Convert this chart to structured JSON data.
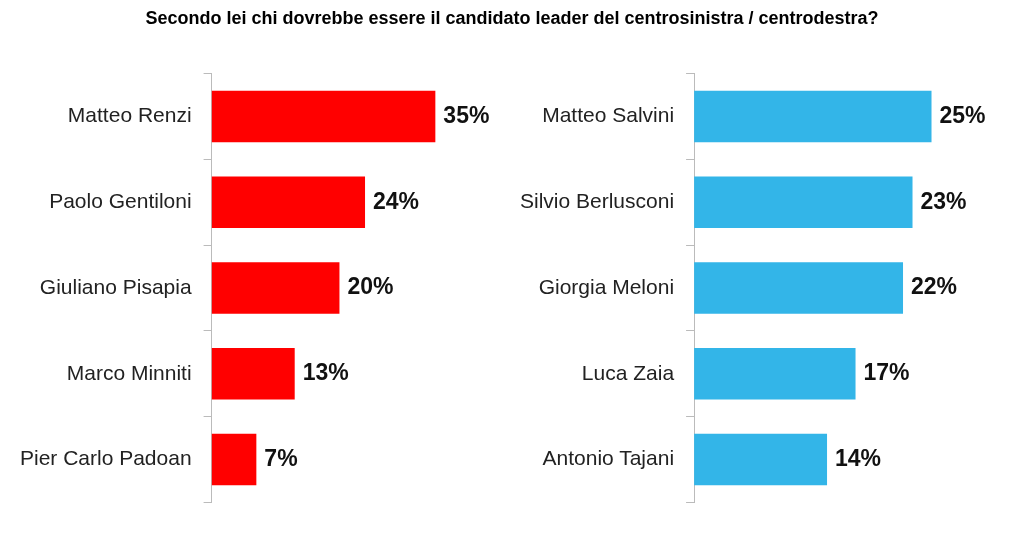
{
  "chart_data": [
    {
      "type": "bar",
      "title": "Secondo lei chi dovrebbe essere il candidato leader del centrosinistra / centrodestra?",
      "orientation": "horizontal",
      "categories": [
        "Matteo Renzi",
        "Paolo Gentiloni",
        "Giuliano Pisapia",
        "Marco Minniti",
        "Pier Carlo Padoan"
      ],
      "values": [
        35,
        24,
        20,
        13,
        7
      ],
      "value_labels": [
        "35%",
        "24%",
        "20%",
        "13%",
        "7%"
      ],
      "color": "#ff0000",
      "tick_labels": "y"
    },
    {
      "type": "bar",
      "orientation": "horizontal",
      "categories": [
        "Matteo Salvini",
        "Silvio Berlusconi",
        "Giorgia Meloni",
        "Luca Zaia",
        "Antonio Tajani"
      ],
      "values": [
        25,
        23,
        22,
        17,
        14
      ],
      "value_labels": [
        "25%",
        "23%",
        "22%",
        "17%",
        "14%"
      ],
      "color": "#33b5e8",
      "tick_labels": "y"
    }
  ]
}
